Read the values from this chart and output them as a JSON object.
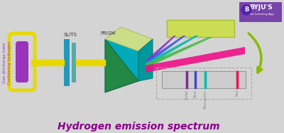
{
  "bg_color": "#d4d4d4",
  "title": "Hydrogen emission spectrum",
  "title_color": "#8B008B",
  "title_fontsize": 10,
  "tube_label": "Gas discharge tube\nContaining hydrogen",
  "slits_label": "SLITS",
  "prism_label": "PRISM",
  "spectrum_lines": [
    {
      "xf": 0.3,
      "color": "#7B2D8B",
      "label": "Violet",
      "lw": 2.5
    },
    {
      "xf": 0.4,
      "color": "#4444CC",
      "label": "Blue",
      "lw": 2.5
    },
    {
      "xf": 0.52,
      "color": "#00BBAA",
      "label": "Blue-green",
      "lw": 2.5
    },
    {
      "xf": 0.9,
      "color": "#EE1155",
      "label": "Red",
      "lw": 2.5
    }
  ],
  "arrow_color": "#88BB00",
  "byju_bg": "#7744AA",
  "byju_text": "BYJU'S",
  "byju_sub": "The Learning App"
}
